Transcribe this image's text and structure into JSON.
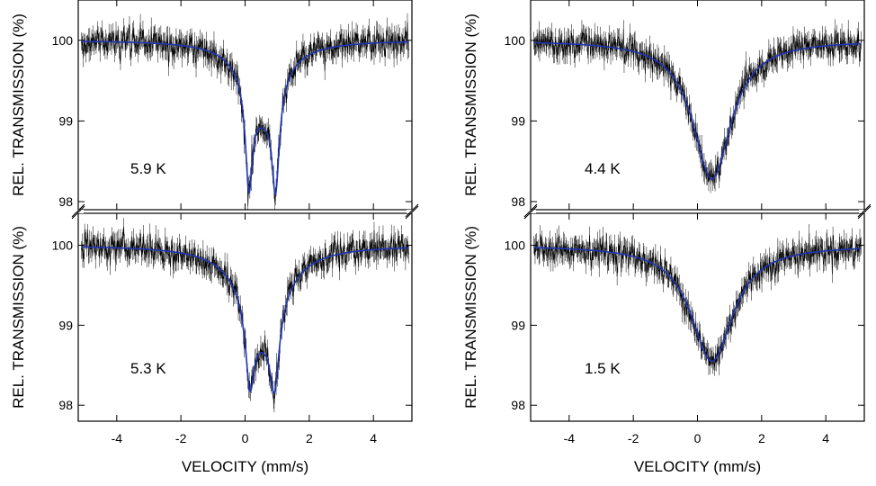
{
  "chart_data": {
    "type": "line",
    "x_range": [
      -5.2,
      5.2
    ],
    "x_ticks": [
      -4,
      -2,
      0,
      2,
      4
    ],
    "y_ticks": [
      98,
      99,
      100
    ],
    "grid": false,
    "panels": [
      {
        "id": "top-left",
        "column": "left",
        "row": "top",
        "label": "5.9 K",
        "xlabel": "",
        "ylabel": "REL. TRANSMISSION (%)",
        "ylim": [
          97.9,
          100.5
        ],
        "baseline": 100.0,
        "fit_lines": [
          {
            "center": 0.12,
            "width": 0.26,
            "depth": 1.25
          },
          {
            "center": 0.95,
            "width": 0.28,
            "depth": 1.25
          },
          {
            "center": 0.55,
            "width": 1.35,
            "depth": 0.85
          }
        ],
        "noise": 0.11
      },
      {
        "id": "top-right",
        "column": "right",
        "row": "top",
        "label": "4.4 K",
        "xlabel": "",
        "ylabel": "REL. TRANSMISSION (%)",
        "ylim": [
          97.9,
          100.5
        ],
        "baseline": 100.0,
        "fit_lines": [
          {
            "center": 0.45,
            "width": 1.45,
            "depth": 1.72
          }
        ],
        "noise": 0.11
      },
      {
        "id": "bottom-left",
        "column": "left",
        "row": "bottom",
        "label": "5.3 K",
        "xlabel": "VELOCITY (mm/s)",
        "ylabel": "REL. TRANSMISSION (%)",
        "ylim": [
          97.8,
          100.4
        ],
        "baseline": 100.0,
        "fit_lines": [
          {
            "center": 0.15,
            "width": 0.32,
            "depth": 0.95
          },
          {
            "center": 0.92,
            "width": 0.34,
            "depth": 0.95
          },
          {
            "center": 0.55,
            "width": 1.55,
            "depth": 1.05
          }
        ],
        "noise": 0.11
      },
      {
        "id": "bottom-right",
        "column": "right",
        "row": "bottom",
        "label": "1.5 K",
        "xlabel": "VELOCITY (mm/s)",
        "ylabel": "REL. TRANSMISSION (%)",
        "ylim": [
          97.8,
          100.4
        ],
        "baseline": 100.0,
        "fit_lines": [
          {
            "center": 0.45,
            "width": 1.6,
            "depth": 1.45
          }
        ],
        "noise": 0.11
      }
    ]
  }
}
